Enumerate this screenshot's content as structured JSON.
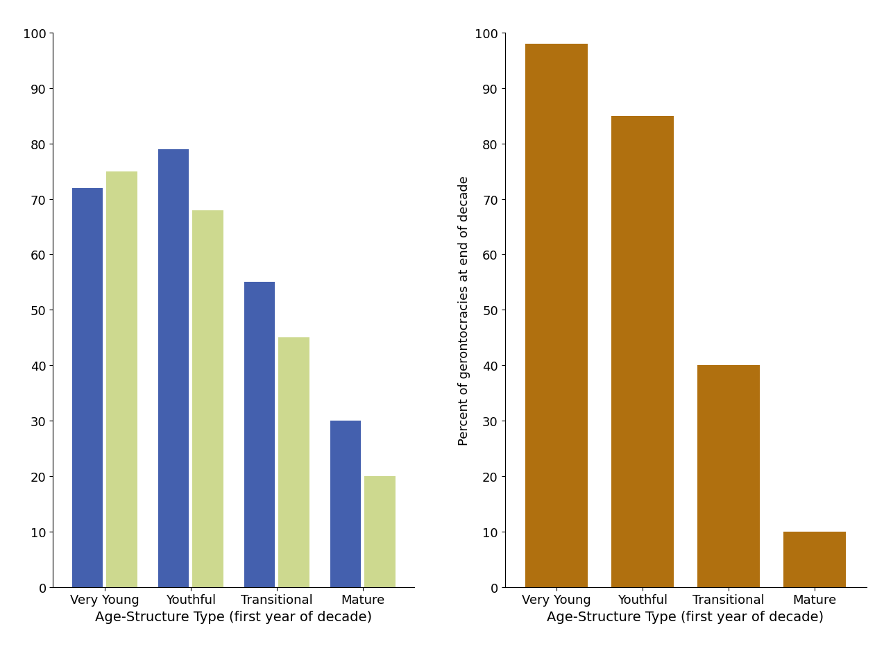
{
  "chart_data": [
    {
      "type": "bar",
      "xlabel": "Age-Structure Type (first year of decade)",
      "categories": [
        "Very Young",
        "Youthful",
        "Transitional",
        "Mature"
      ],
      "series": [
        {
          "color": "#4460ae",
          "values": [
            72,
            79,
            55,
            30
          ]
        },
        {
          "color": "#cdd98f",
          "values": [
            75,
            68,
            45,
            20
          ]
        }
      ],
      "ylim": [
        0,
        100
      ],
      "yticks": [
        0,
        10,
        20,
        30,
        40,
        50,
        60,
        70,
        80,
        90,
        100
      ]
    },
    {
      "type": "bar",
      "xlabel": "Age-Structure Type (first year of decade)",
      "ylabel": "Percent of gerontocracies at end of decade",
      "categories": [
        "Very Young",
        "Youthful",
        "Transitional",
        "Mature"
      ],
      "series": [
        {
          "color": "#b0700f",
          "values": [
            98,
            85,
            40,
            10
          ]
        }
      ],
      "ylim": [
        0,
        100
      ],
      "yticks": [
        0,
        10,
        20,
        30,
        40,
        50,
        60,
        70,
        80,
        90,
        100
      ]
    }
  ]
}
